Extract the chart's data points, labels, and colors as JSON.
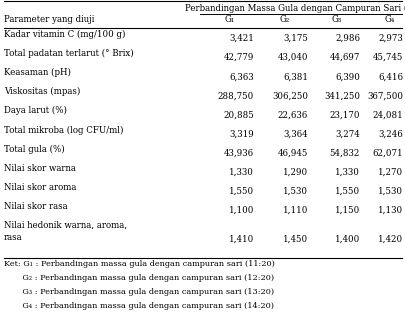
{
  "header_main": "Perbandingan Massa Gula dengan Campuran Sari (G)",
  "col_headers": [
    "G₁",
    "G₂",
    "G₃",
    "G₄"
  ],
  "row_header": "Parameter yang diuji",
  "rows": [
    [
      "Kadar vitamin C (mg/100 g)",
      "3,421",
      "3,175",
      "2,986",
      "2,973"
    ],
    [
      "Total padatan terlarut (° Brix)",
      "42,779",
      "43,040",
      "44,697",
      "45,745"
    ],
    [
      "Keasaman (pH)",
      "6,363",
      "6,381",
      "6,390",
      "6,416"
    ],
    [
      "Viskositas (mpas)",
      "288,750",
      "306,250",
      "341,250",
      "367,500"
    ],
    [
      "Daya larut (%)",
      "20,885",
      "22,636",
      "23,170",
      "24,081"
    ],
    [
      "Total mikroba (log CFU/ml)",
      "3,319",
      "3,364",
      "3,274",
      "3,246"
    ],
    [
      "Total gula (%)",
      "43,936",
      "46,945",
      "54,832",
      "62,071"
    ],
    [
      "Nilai skor warna",
      "1,330",
      "1,290",
      "1,330",
      "1,270"
    ],
    [
      "Nilai skor aroma",
      "1,550",
      "1,530",
      "1,550",
      "1,530"
    ],
    [
      "Nilai skor rasa",
      "1,100",
      "1,110",
      "1,150",
      "1,130"
    ],
    [
      "Nilai hedonik warna, aroma,\nrasa",
      "1,410",
      "1,450",
      "1,400",
      "1,420"
    ]
  ],
  "footnote_lines": [
    [
      "Ket: G₁",
      " : Perbandingan massa gula dengan campuran sari (11:20)"
    ],
    [
      "       G₂",
      " : Perbandingan massa gula dengan campuran sari (12:20)"
    ],
    [
      "       G₃",
      " : Perbandingan massa gula dengan campuran sari (13:20)"
    ],
    [
      "       G₄",
      " : Perbandingan massa gula dengan campuran sari (14:20)"
    ]
  ],
  "font_size": 6.2,
  "font_family": "DejaVu Serif"
}
